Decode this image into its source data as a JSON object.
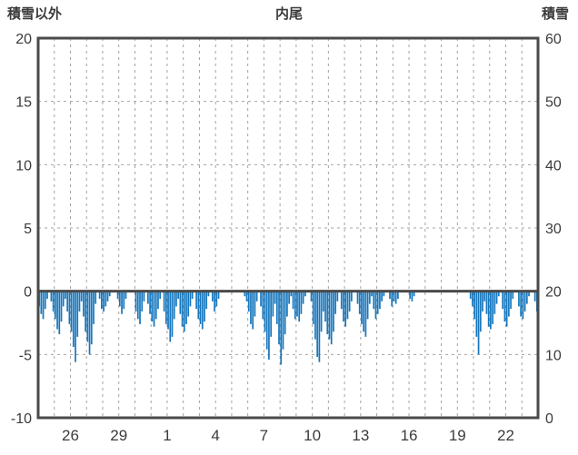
{
  "header": {
    "left": "積雪以外",
    "center": "内尾",
    "right": "積雪"
  },
  "chart_data": {
    "type": "bar",
    "title": "内尾",
    "bar_color": "#1777bd",
    "left_axis": {
      "title": "積雪以外",
      "min": -10,
      "max": 20,
      "ticks": [
        20,
        15,
        10,
        5,
        0,
        -5,
        -10
      ]
    },
    "right_axis": {
      "title": "積雪",
      "min": 0,
      "max": 60,
      "ticks": [
        60,
        50,
        40,
        30,
        20,
        10,
        0
      ]
    },
    "x_axis": {
      "labels": [
        "26",
        "29",
        "1",
        "4",
        "7",
        "10",
        "13",
        "16",
        "19",
        "22"
      ],
      "label_day_index": [
        2,
        5,
        8,
        11,
        14,
        17,
        20,
        23,
        26,
        29
      ],
      "total_days": 31,
      "values_per_day": 8
    },
    "zero_baseline": 0,
    "grid": true,
    "daily_values": [
      [
        -1.2,
        -1.8,
        -2.2,
        -1.4,
        -0.6,
        0,
        -0.8,
        -1.6
      ],
      [
        -2.2,
        -3.0,
        -3.4,
        -2.4,
        -1.2,
        -0.6,
        -1.6,
        -2.6
      ],
      [
        -3.2,
        -4.4,
        -5.6,
        -3.6,
        -1.6,
        -0.8,
        -2.0,
        -3.2
      ],
      [
        -4.0,
        -5.0,
        -4.2,
        -2.6,
        -1.0,
        0,
        -0.6,
        -1.4
      ],
      [
        -1.6,
        -1.2,
        -0.8,
        -0.4,
        0,
        0,
        0,
        -0.6
      ],
      [
        -1.2,
        -1.8,
        -1.4,
        -0.6,
        0,
        0,
        0,
        0
      ],
      [
        -1.6,
        -2.2,
        -2.6,
        -1.6,
        -0.8,
        0,
        -1.0,
        -1.8
      ],
      [
        -2.4,
        -2.8,
        -2.2,
        -1.4,
        -0.6,
        0,
        -1.6,
        -2.6
      ],
      [
        -3.0,
        -4.0,
        -3.6,
        -2.2,
        -1.2,
        -0.6,
        -1.8,
        -2.8
      ],
      [
        -3.2,
        -2.6,
        -2.0,
        -1.2,
        -0.6,
        0,
        -1.4,
        -2.2
      ],
      [
        -2.6,
        -3.0,
        -2.4,
        -1.4,
        -0.4,
        0,
        -0.8,
        -1.6
      ],
      [
        -1.2,
        -0.6,
        0,
        0,
        0,
        0,
        0,
        0
      ],
      [
        0,
        0,
        0,
        0,
        0,
        0,
        -0.4,
        -0.8
      ],
      [
        -1.6,
        -2.6,
        -3.0,
        -2.0,
        -0.8,
        0,
        -1.2,
        -2.2
      ],
      [
        -3.2,
        -4.6,
        -5.4,
        -3.6,
        -2.0,
        -1.0,
        -2.6,
        -4.2
      ],
      [
        -5.8,
        -4.6,
        -3.4,
        -2.0,
        -1.0,
        -0.4,
        -1.4,
        -2.2
      ],
      [
        -2.0,
        -2.4,
        -1.8,
        -1.0,
        -0.4,
        0,
        0,
        -0.8
      ],
      [
        -2.6,
        -3.8,
        -5.2,
        -5.6,
        -3.2,
        -1.6,
        -2.4,
        -3.4
      ],
      [
        -3.8,
        -4.2,
        -3.2,
        -1.8,
        -0.8,
        0,
        -1.4,
        -2.4
      ],
      [
        -2.8,
        -2.2,
        -1.6,
        -0.8,
        0,
        0,
        -1.0,
        -1.8
      ],
      [
        -2.6,
        -3.2,
        -3.6,
        -2.2,
        -1.0,
        -0.4,
        -1.4,
        -2.2
      ],
      [
        -1.8,
        -1.4,
        -0.8,
        -0.4,
        0,
        0,
        -0.6,
        -1.2
      ],
      [
        -0.8,
        -1.0,
        -0.6,
        0,
        0,
        0,
        0,
        0
      ],
      [
        -0.6,
        -0.8,
        -0.4,
        0,
        0,
        0,
        0,
        0
      ],
      [
        0,
        0,
        0,
        0,
        0,
        0,
        0,
        0
      ],
      [
        0,
        0,
        0,
        0,
        0,
        0,
        0,
        0
      ],
      [
        0,
        0,
        0,
        0,
        0,
        0,
        -0.6,
        -1.2
      ],
      [
        -2.2,
        -3.6,
        -5.0,
        -3.2,
        -1.6,
        -0.8,
        -1.8,
        -2.8
      ],
      [
        -3.0,
        -2.6,
        -1.8,
        -1.0,
        -0.4,
        0,
        -1.4,
        -2.4
      ],
      [
        -2.8,
        -2.0,
        -1.4,
        -0.6,
        0,
        0,
        -1.2,
        -2.0
      ],
      [
        -2.2,
        -1.6,
        -1.0,
        -0.4,
        0,
        0,
        -0.8,
        -1.6
      ]
    ]
  },
  "style": {
    "frame_color": "#4a4a4a",
    "grid_color": "#a3a3a3",
    "text_color": "#3b3b3b",
    "background": "#ffffff"
  }
}
